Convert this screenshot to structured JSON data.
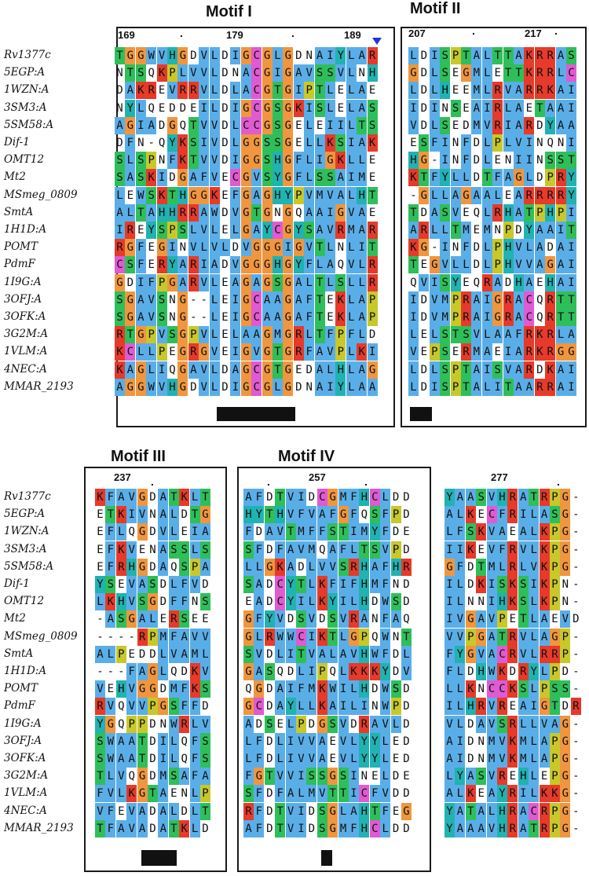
{
  "motifs": {
    "m1": "Motif I",
    "m2": "Motif II",
    "m3": "Motif III",
    "m4": "Motif IV"
  },
  "position_numbers": {
    "p169": "169",
    "p179": "179",
    "p189": "189",
    "p207": "207",
    "p217": "217",
    "p237": "237",
    "p257": "257",
    "p277": "277"
  },
  "sequence_names": [
    "Rv1377c",
    "5EGP:A",
    "1WZN:A",
    "3SM3:A",
    "5SM58:A",
    "Dif-1",
    "OMT12",
    "Mt2",
    "MSmeg_0809",
    "SmtA",
    "1H1D:A",
    "POMT",
    "PdmF",
    "1I9G:A",
    "3OFJ:A",
    "3OFK:A",
    "3G2M:A",
    "1VLM:A",
    "4NEC:A",
    "MMAR_2193"
  ],
  "alignment_top_left": [
    "TGGWVHGDVLDIGCGLGDNAIYLAR",
    "NTSQKPLVVLDNACGIGAVSSVLNH",
    "DAKREVRRVLDLACGTGIPTLELAE",
    "NYLQEDDEILDIGCGSGKISLELAS",
    "AGIADGQTVVDLCCGSGELEIILTS",
    "DFN-QYKSIVDLGGSSGELLKSIAK",
    "SLSPNFKTVVDIGGSHGFLIGKLLE",
    "SASKIDGAFVECGVSYGFLSSAIME",
    "LEWSKTHGGKEFGAGHYPVMVALHT",
    "ALTAHHRRAWDVGTGNGQAAIGVAE",
    "IREYSPSLVLELGAYCGYSAVRMAR",
    "RGFEGINVLVLDVGGGIGVTLNLIT",
    "CSFERYARIADVGGGHGYFLAQVLR",
    "GDIFPGARVLEAGAGSGALTLSLLR",
    "SGAVSNG--LEIGCAAGAFTEKLAP",
    "SGAVSNG--LEIGCAAGAFTEKLAP",
    "RTGPVSGPVLELAAGMGRLTFPFLD",
    "KCLLPEGRGVEIGVGTGRFAVPLKI",
    "KAGLIQGAVLDAGCGTGEDALHLAG",
    "AGGWVHGDVLDIGCGLGDNAIYLAA"
  ],
  "alignment_top_right": [
    "LDISPTALTTAKRRAS",
    "GDLSEGMLETTKRRLC",
    "LDLHEEMLRVARRKAI",
    "IDINSEAIRLAETAAI",
    "VDLSEDMVRIARDYAA",
    "ESFINFDLPLVINQNI",
    "HG-INFDLENIINSST",
    "KTFYLLDTFAGLDPRY",
    "-GLLAGAALEARRRRY",
    "TDASVEQLRHATPHPI",
    "ARLLTMEMNPDYAAIT",
    "KG-INFDLPHVLADAI",
    "TEGVLLDLPHVVAGAI",
    "QVISYEQRADHAEHAI",
    "IDVMPRAIGRACQRTT",
    "IDVMPRAIGRACQRTT",
    "LELSTSVLAAFRKRLA",
    "VEPSERMAEIARKRGG",
    "LDLSPTAISVARDKAI",
    "LDISPTALITAARRAI"
  ],
  "alignment_bottom_left": [
    "KFAVGDATKLT",
    "ETKIVNALDTG",
    "EFLQGDVLEIA",
    "EFKVENASSLS",
    "EFRHGDAQSPA",
    "YSEVASDLFVD",
    "LKHVSGDFFNS",
    "-ASGALERSEE",
    "----RPMFAVV",
    "ALPEDDLVAML",
    "---FAGLQDKV",
    "VEHVGGDMFKS",
    "RVQVVPGSFFD",
    "YGQPPDNWRLV",
    "SWAATDILQFS",
    "SWAATDILQFS",
    "TLVQGDMSAFA",
    "FVLKGTAENLP",
    "VFEVADALDLT",
    "TFAVADATKLD"
  ],
  "alignment_bottom_mid": [
    "AFDTVIDCGMFHCLDD",
    "HYTHVFVAFGFQSFPD",
    "FDAVTMFFSTIMYFDE",
    "SFDFAVMQAFLTSVPD",
    "LLGKADLVVSRHAFHR",
    "SADCYTLKFIFHMFND",
    "EADCYILKYILHDWSD",
    "GFYVDSVDSVRANFAQ",
    "GLRWWCIKTLGPQWNT",
    "SVDLITVALAVHWFDL",
    "GASQDLIPQLKKKYDV",
    "QGDAIFMKWILHDWSD",
    "GCDAYLLKAILINWPD",
    "ADSELPDGSVDRAVLD",
    "LFDLIVVAEVLYYLED",
    "LFDLIVVAEVLYYLED",
    "FGTVVISSGSINELDE",
    "SFDFALMVTTICFVDD",
    "RFDTVIDSGLAHTFEG",
    "AFDTVIDSGMFHCLDD"
  ],
  "alignment_bottom_right": [
    "YAASVHRATRPG-",
    "ALKECFRILASG-",
    "LFSKVAEALKPG-",
    "IIKEVFRVLKPG-",
    "GFDTMLRLVKPG-",
    "ILDKISKSIKPN-",
    "ILNNIHKSLKPN-",
    "IVGAVPETLAEVD",
    "VVPGATRVLAGP-",
    "FYGVACRVLRRP-",
    "FLDHWKDRYLPD-",
    "LLKNCCKSLPSS-",
    "ILHRVREAIGTDR",
    "VLDAVSRLLVAG-",
    "AIDNMVKMLAPG-",
    "AIDNMVKMLAPG-",
    "LYASVREHLEPG-",
    "ALKEAYRILKKG-",
    "YATALHRACRPG-",
    "YAAAVHRATRPG-"
  ],
  "colors": {
    "blue": "#5aaee8",
    "orange": "#f0963e",
    "magenta": "#e05ad2",
    "green": "#2fbf5a",
    "yellow": "#c8c82a",
    "teal": "#21b2b2",
    "red": "#e63a2a",
    "marker": "#2233dd"
  }
}
